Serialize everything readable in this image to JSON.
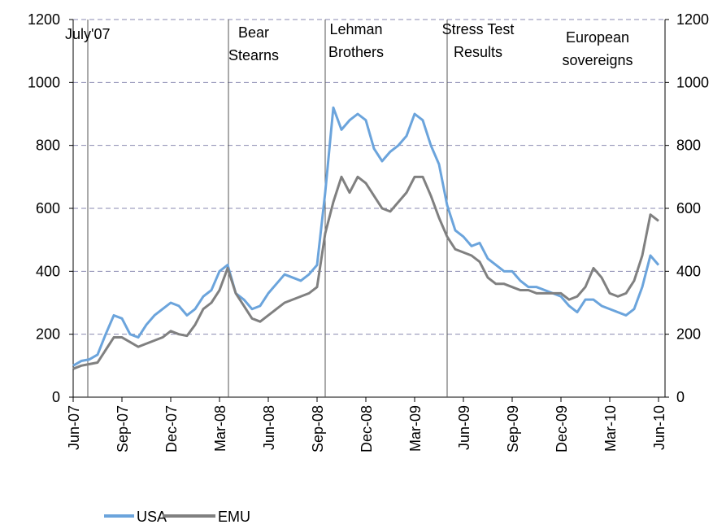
{
  "chart_data": {
    "type": "line",
    "categories": [
      "Jun-07",
      null,
      null,
      null,
      null,
      null,
      "Sep-07",
      null,
      null,
      null,
      null,
      null,
      "Dec-07",
      null,
      null,
      null,
      null,
      null,
      "Mar-08",
      null,
      null,
      null,
      null,
      null,
      "Jun-08",
      null,
      null,
      null,
      null,
      null,
      "Sep-08",
      null,
      null,
      null,
      null,
      null,
      "Dec-08",
      null,
      null,
      null,
      null,
      null,
      "Mar-09",
      null,
      null,
      null,
      null,
      null,
      "Jun-09",
      null,
      null,
      null,
      null,
      null,
      "Sep-09",
      null,
      null,
      null,
      null,
      null,
      "Dec-09",
      null,
      null,
      null,
      null,
      null,
      "Mar-10",
      null,
      null,
      null,
      null,
      null,
      "Jun-10"
    ],
    "series": [
      {
        "name": "USA",
        "color": "#6ba4dc",
        "values": [
          100,
          115,
          120,
          135,
          200,
          260,
          250,
          200,
          190,
          230,
          260,
          280,
          300,
          290,
          260,
          280,
          320,
          340,
          400,
          420,
          330,
          310,
          280,
          290,
          330,
          360,
          390,
          380,
          370,
          390,
          420,
          650,
          920,
          850,
          880,
          900,
          880,
          790,
          750,
          780,
          800,
          830,
          900,
          880,
          800,
          740,
          610,
          530,
          510,
          480,
          490,
          440,
          420,
          400,
          400,
          370,
          350,
          350,
          340,
          330,
          320,
          290,
          270,
          310,
          310,
          290,
          280,
          270,
          260,
          280,
          350,
          450,
          420
        ]
      },
      {
        "name": "EMU",
        "color": "#808080",
        "values": [
          90,
          100,
          105,
          110,
          150,
          190,
          190,
          175,
          160,
          170,
          180,
          190,
          210,
          200,
          195,
          230,
          280,
          300,
          340,
          410,
          330,
          290,
          250,
          240,
          260,
          280,
          300,
          310,
          320,
          330,
          350,
          520,
          620,
          700,
          650,
          700,
          680,
          640,
          600,
          590,
          620,
          650,
          700,
          700,
          640,
          570,
          510,
          470,
          460,
          450,
          430,
          380,
          360,
          360,
          350,
          340,
          340,
          330,
          330,
          330,
          330,
          310,
          320,
          350,
          410,
          380,
          330,
          320,
          330,
          370,
          450,
          580,
          560
        ]
      }
    ],
    "ylim": [
      0,
      1200
    ],
    "yticks": [
      0,
      200,
      400,
      600,
      800,
      1000,
      1200
    ],
    "y2lim": [
      0,
      1200
    ],
    "y2ticks": [
      0,
      200,
      400,
      600,
      800,
      1000,
      1200
    ],
    "grid": true,
    "annotations": [
      {
        "lines": [
          "July'07"
        ]
      },
      {
        "lines": [
          "Bear",
          "Stearns"
        ]
      },
      {
        "lines": [
          "Lehman",
          "Brothers"
        ]
      },
      {
        "lines": [
          "Stress Test",
          "Results"
        ]
      },
      {
        "lines": [
          "European",
          "sovereigns"
        ]
      }
    ]
  }
}
